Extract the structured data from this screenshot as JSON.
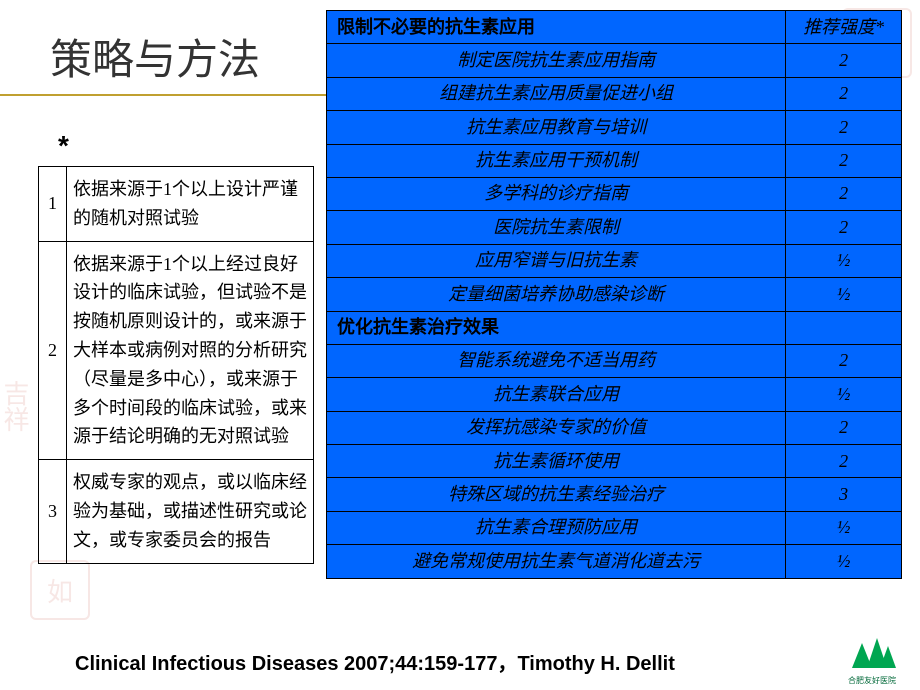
{
  "title": "策略与方法",
  "star": "*",
  "leftTable": {
    "rows": [
      {
        "num": "1",
        "text": "依据来源于1个以上设计严谨的随机对照试验"
      },
      {
        "num": "2",
        "text": "依据来源于1个以上经过良好设计的临床试验，但试验不是按随机原则设计的，或来源于大样本或病例对照的分析研究（尽量是多中心），或来源于多个时间段的临床试验，或来源于结论明确的无对照试验"
      },
      {
        "num": "3",
        "text": "权威专家的观点，或以临床经验为基础，或描述性研究或论文，或专家委员会的报告"
      }
    ]
  },
  "rightTable": {
    "header": {
      "c1": "限制不必要的抗生素应用",
      "c2": "推荐强度*"
    },
    "rows": [
      {
        "c1": "制定医院抗生素应用指南",
        "c2": "2",
        "section": false
      },
      {
        "c1": "组建抗生素应用质量促进小组",
        "c2": "2",
        "section": false
      },
      {
        "c1": "抗生素应用教育与培训",
        "c2": "2",
        "section": false
      },
      {
        "c1": "抗生素应用干预机制",
        "c2": "2",
        "section": false
      },
      {
        "c1": "多学科的诊疗指南",
        "c2": "2",
        "section": false
      },
      {
        "c1": "医院抗生素限制",
        "c2": "2",
        "section": false
      },
      {
        "c1": "应用窄谱与旧抗生素",
        "c2": "½",
        "section": false
      },
      {
        "c1": "定量细菌培养协助感染诊断",
        "c2": "½",
        "section": false
      },
      {
        "c1": "优化抗生素治疗效果",
        "c2": "",
        "section": true
      },
      {
        "c1": "智能系统避免不适当用药",
        "c2": "2",
        "section": false
      },
      {
        "c1": "抗生素联合应用",
        "c2": "½",
        "section": false
      },
      {
        "c1": "发挥抗感染专家的价值",
        "c2": "2",
        "section": false
      },
      {
        "c1": "抗生素循环使用",
        "c2": "2",
        "section": false
      },
      {
        "c1": "特殊区域的抗生素经验治疗",
        "c2": "3",
        "section": false
      },
      {
        "c1": "抗生素合理预防应用",
        "c2": "½",
        "section": false
      },
      {
        "c1": "避免常规使用抗生素气道消化道去污",
        "c2": "½",
        "section": false
      }
    ]
  },
  "footer": "Clinical Infectious Diseases 2007;44:159-177，Timothy H. Dellit",
  "logo": {
    "text": "合肥友好医院",
    "color": "#00a651"
  },
  "colors": {
    "tableBg": "#0066ff",
    "ruleColor": "#c0a030"
  }
}
